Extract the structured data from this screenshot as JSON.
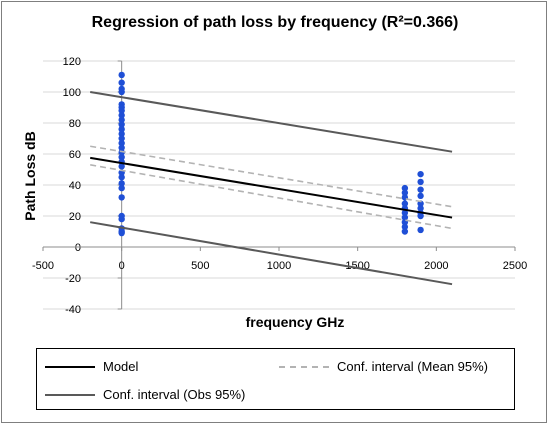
{
  "chart_data": {
    "type": "scatter",
    "title": "Regression of path loss by frequency (R²=0.366)",
    "xlabel": "frequency GHz",
    "ylabel": "Path Loss dB",
    "xlim": [
      -500,
      2500
    ],
    "ylim": [
      -40,
      120
    ],
    "x_ticks": [
      -500,
      0,
      500,
      1000,
      1500,
      2000,
      2500
    ],
    "y_ticks": [
      -40,
      -20,
      0,
      20,
      40,
      60,
      80,
      100,
      120
    ],
    "grid": "horizontal",
    "legend_position": "bottom",
    "marker_color": "#1f4fd6",
    "points": [
      {
        "x": 0,
        "y": 111
      },
      {
        "x": 0,
        "y": 106
      },
      {
        "x": 0,
        "y": 102
      },
      {
        "x": 0,
        "y": 100
      },
      {
        "x": 0,
        "y": 92
      },
      {
        "x": 0,
        "y": 90
      },
      {
        "x": 0,
        "y": 88
      },
      {
        "x": 0,
        "y": 85
      },
      {
        "x": 0,
        "y": 82
      },
      {
        "x": 0,
        "y": 79
      },
      {
        "x": 0,
        "y": 76
      },
      {
        "x": 0,
        "y": 73
      },
      {
        "x": 0,
        "y": 70
      },
      {
        "x": 0,
        "y": 67
      },
      {
        "x": 0,
        "y": 64
      },
      {
        "x": 0,
        "y": 61
      },
      {
        "x": 0,
        "y": 58
      },
      {
        "x": 0,
        "y": 55
      },
      {
        "x": 0,
        "y": 52
      },
      {
        "x": 0,
        "y": 48
      },
      {
        "x": 0,
        "y": 45
      },
      {
        "x": 0,
        "y": 41
      },
      {
        "x": 0,
        "y": 38
      },
      {
        "x": 0,
        "y": 32
      },
      {
        "x": 0,
        "y": 20
      },
      {
        "x": 0,
        "y": 18
      },
      {
        "x": 0,
        "y": 12
      },
      {
        "x": 0,
        "y": 10
      },
      {
        "x": 0,
        "y": 9
      },
      {
        "x": 1800,
        "y": 38
      },
      {
        "x": 1800,
        "y": 35
      },
      {
        "x": 1800,
        "y": 32
      },
      {
        "x": 1800,
        "y": 28
      },
      {
        "x": 1800,
        "y": 25
      },
      {
        "x": 1800,
        "y": 22
      },
      {
        "x": 1800,
        "y": 19
      },
      {
        "x": 1800,
        "y": 16
      },
      {
        "x": 1800,
        "y": 13
      },
      {
        "x": 1800,
        "y": 10
      },
      {
        "x": 1900,
        "y": 47
      },
      {
        "x": 1900,
        "y": 42
      },
      {
        "x": 1900,
        "y": 37
      },
      {
        "x": 1900,
        "y": 33
      },
      {
        "x": 1900,
        "y": 28
      },
      {
        "x": 1900,
        "y": 25
      },
      {
        "x": 1900,
        "y": 22
      },
      {
        "x": 1900,
        "y": 20
      },
      {
        "x": 1900,
        "y": 11
      }
    ],
    "series": [
      {
        "name": "Model",
        "style": "solid",
        "color": "#000000",
        "x": [
          -200,
          2100
        ],
        "y": [
          57.5,
          19
        ]
      },
      {
        "name": "Conf. interval (Mean 95%)",
        "style": "dashed",
        "color": "#b3b3b3",
        "x": [
          -200,
          2100
        ],
        "y": [
          65,
          26
        ]
      },
      {
        "name": "Conf. interval (Mean 95%)",
        "style": "dashed",
        "color": "#b3b3b3",
        "x": [
          -200,
          2100
        ],
        "y": [
          53,
          12
        ]
      },
      {
        "name": "Conf. interval (Obs 95%)",
        "style": "solid",
        "color": "#595959",
        "x": [
          -200,
          2100
        ],
        "y": [
          100,
          61.5
        ]
      },
      {
        "name": "Conf. interval (Obs 95%)",
        "style": "solid",
        "color": "#595959",
        "x": [
          -200,
          2100
        ],
        "y": [
          16,
          -24
        ]
      }
    ]
  },
  "legend": {
    "model": "Model",
    "mean_ci": "Conf. interval (Mean 95%)",
    "obs_ci": "Conf. interval (Obs 95%)"
  }
}
